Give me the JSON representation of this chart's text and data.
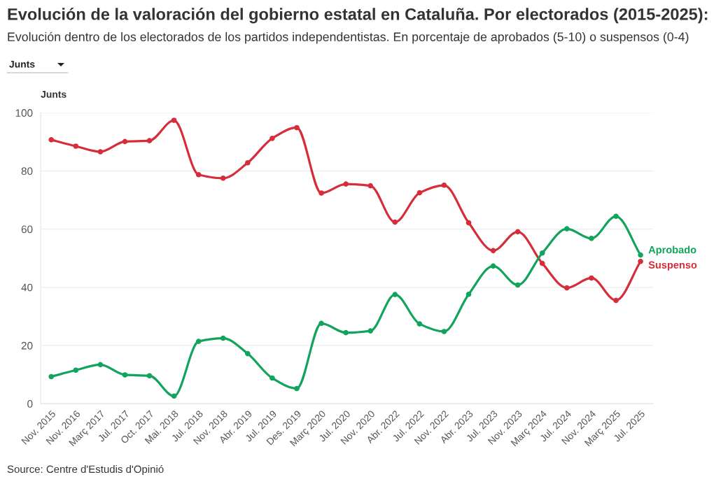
{
  "chart_data": {
    "type": "line",
    "title": "Evolución de la valoración del gobierno estatal en Cataluña. Por electorados (2015-2025):",
    "subtitle": "Evolución dentro de los electorados de los partidos independentistas. En porcentaje de aprobados (5-10) o suspensos (0-4)",
    "ylabel": "Junts",
    "annotations": [
      "Junts",
      "Source: Centre d'Estudis d'Opinió"
    ],
    "categories": [
      "Nov. 2015",
      "Nov. 2016",
      "Març 2017",
      "Jul. 2017",
      "Oct. 2017",
      "Mai. 2018",
      "Jul. 2018",
      "Nov. 2018",
      "Abr. 2019",
      "Jul. 2019",
      "Des. 2019",
      "Març 2020",
      "Jul. 2020",
      "Nov. 2020",
      "Abr. 2022",
      "Jul. 2022",
      "Nov. 2022",
      "Abr. 2023",
      "Jul. 2023",
      "Nov. 2023",
      "Març 2024",
      "Jul. 2024",
      "Nov. 2024",
      "Març 2025",
      "Jul. 2025"
    ],
    "series": [
      {
        "name": "Aprobado",
        "color": "#12a35d",
        "values": [
          9.3,
          11.5,
          13.4,
          9.9,
          9.6,
          2.6,
          21.4,
          22.5,
          17.2,
          8.8,
          5.2,
          27.6,
          24.4,
          25.0,
          37.5,
          27.4,
          24.8,
          37.6,
          47.3,
          40.8,
          51.8,
          60.1,
          56.8,
          64.4,
          51.1
        ]
      },
      {
        "name": "Suspenso",
        "color": "#d62d3a",
        "values": [
          90.7,
          88.5,
          86.6,
          90.1,
          90.4,
          97.4,
          78.7,
          77.5,
          82.8,
          91.2,
          94.9,
          72.4,
          75.5,
          74.9,
          62.4,
          72.5,
          75.1,
          62.2,
          52.6,
          59.1,
          48.2,
          39.8,
          43.2,
          35.5,
          48.9
        ]
      }
    ],
    "ylim": [
      0,
      100
    ],
    "yticks": [
      0,
      20,
      40,
      60,
      80,
      100
    ],
    "grid": "y",
    "marker": "circle",
    "line_style": "solid"
  }
}
